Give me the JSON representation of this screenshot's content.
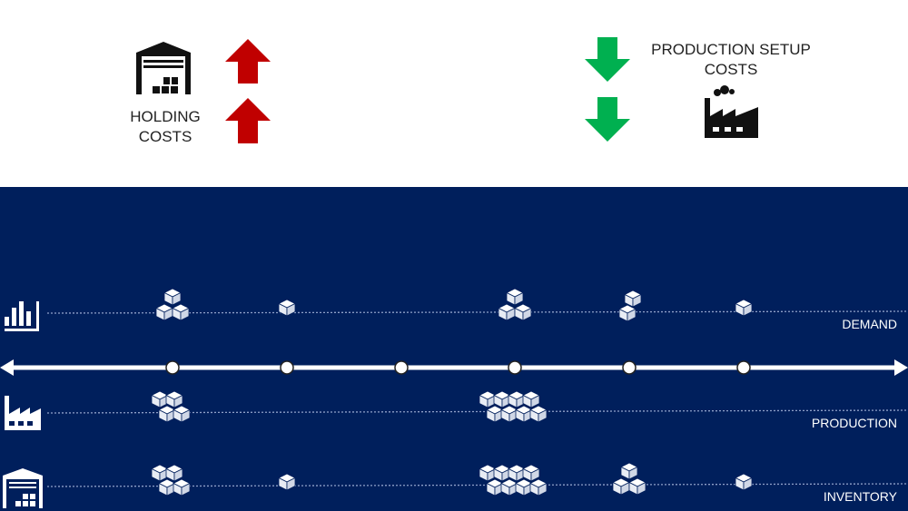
{
  "holding": {
    "label_line1": "HOLDING",
    "label_line2": "COSTS",
    "trend": "up",
    "arrow_color": "#c00000"
  },
  "setup": {
    "label_line1": "PRODUCTION SETUP",
    "label_line2": "COSTS",
    "trend": "down",
    "arrow_color": "#00b050"
  },
  "background_color": "#001f5c",
  "rows": {
    "demand": {
      "label": "DEMAND",
      "icon": "bar-chart-icon",
      "boxes_per_period": [
        3,
        1,
        0,
        3,
        2,
        1
      ]
    },
    "production": {
      "label": "PRODUCTION",
      "icon": "factory-icon",
      "boxes_per_period": [
        4,
        0,
        0,
        7,
        0,
        0
      ]
    },
    "inventory": {
      "label": "INVENTORY",
      "icon": "warehouse-icon",
      "boxes_per_period": [
        4,
        1,
        0,
        7,
        3,
        1
      ]
    }
  },
  "timeline": {
    "periods": 6
  }
}
